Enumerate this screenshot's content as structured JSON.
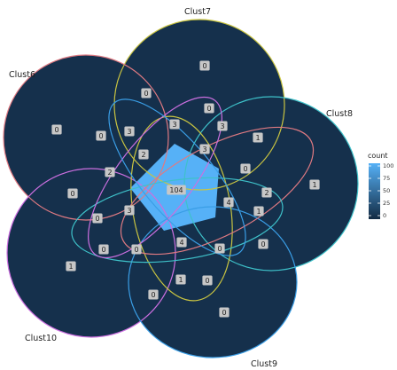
{
  "sets": [
    {
      "name": "Clust7",
      "color": "#c9c441"
    },
    {
      "name": "Clust8",
      "color": "#3ec1c9"
    },
    {
      "name": "Clust9",
      "color": "#3a9ee6"
    },
    {
      "name": "Clust10",
      "color": "#cc6fe0"
    },
    {
      "name": "Clust6",
      "color": "#e07a82"
    }
  ],
  "regions": [
    {
      "id": "r-7",
      "value": "0"
    },
    {
      "id": "r-8",
      "value": "1"
    },
    {
      "id": "r-9",
      "value": "0"
    },
    {
      "id": "r-10",
      "value": "1"
    },
    {
      "id": "r-6",
      "value": "0"
    },
    {
      "id": "r-6-7-a",
      "value": "0"
    },
    {
      "id": "r-7-8-a",
      "value": "0"
    },
    {
      "id": "r-7-8-b",
      "value": "1"
    },
    {
      "id": "r-8-9-a",
      "value": "0"
    },
    {
      "id": "r-9-10-a",
      "value": "0"
    },
    {
      "id": "r-10-6-a",
      "value": "0"
    },
    {
      "id": "r-6-10-b",
      "value": "0"
    },
    {
      "id": "r-m1",
      "value": "3"
    },
    {
      "id": "r-m2",
      "value": "3"
    },
    {
      "id": "r-m3",
      "value": "3"
    },
    {
      "id": "r-m4",
      "value": "2"
    },
    {
      "id": "r-m5",
      "value": "3"
    },
    {
      "id": "r-m6",
      "value": "1"
    },
    {
      "id": "r-m7",
      "value": "0"
    },
    {
      "id": "r-m8",
      "value": "2"
    },
    {
      "id": "r-m9",
      "value": "1"
    },
    {
      "id": "r-m10",
      "value": "4"
    },
    {
      "id": "r-m11",
      "value": "0"
    },
    {
      "id": "r-m12",
      "value": "0"
    },
    {
      "id": "r-m13",
      "value": "4"
    },
    {
      "id": "r-m14",
      "value": "1"
    },
    {
      "id": "r-m15",
      "value": "0"
    },
    {
      "id": "r-m16",
      "value": "0"
    },
    {
      "id": "r-m17",
      "value": "0"
    },
    {
      "id": "r-m18",
      "value": "2"
    },
    {
      "id": "r-m19",
      "value": "0"
    },
    {
      "id": "r-m20",
      "value": "3"
    },
    {
      "id": "r-m21",
      "value": "0"
    },
    {
      "id": "r-m22",
      "value": "0"
    },
    {
      "id": "r-center",
      "value": "104"
    }
  ],
  "legend": {
    "title": "count",
    "ticks": [
      "100",
      "75",
      "50",
      "25",
      "0"
    ],
    "color_low": "#132b43",
    "color_high": "#56b1f7"
  },
  "colors": {
    "fill_dark": "#15304c",
    "center_fill": "#56b1f7",
    "label_box": "#c7c7c7"
  }
}
